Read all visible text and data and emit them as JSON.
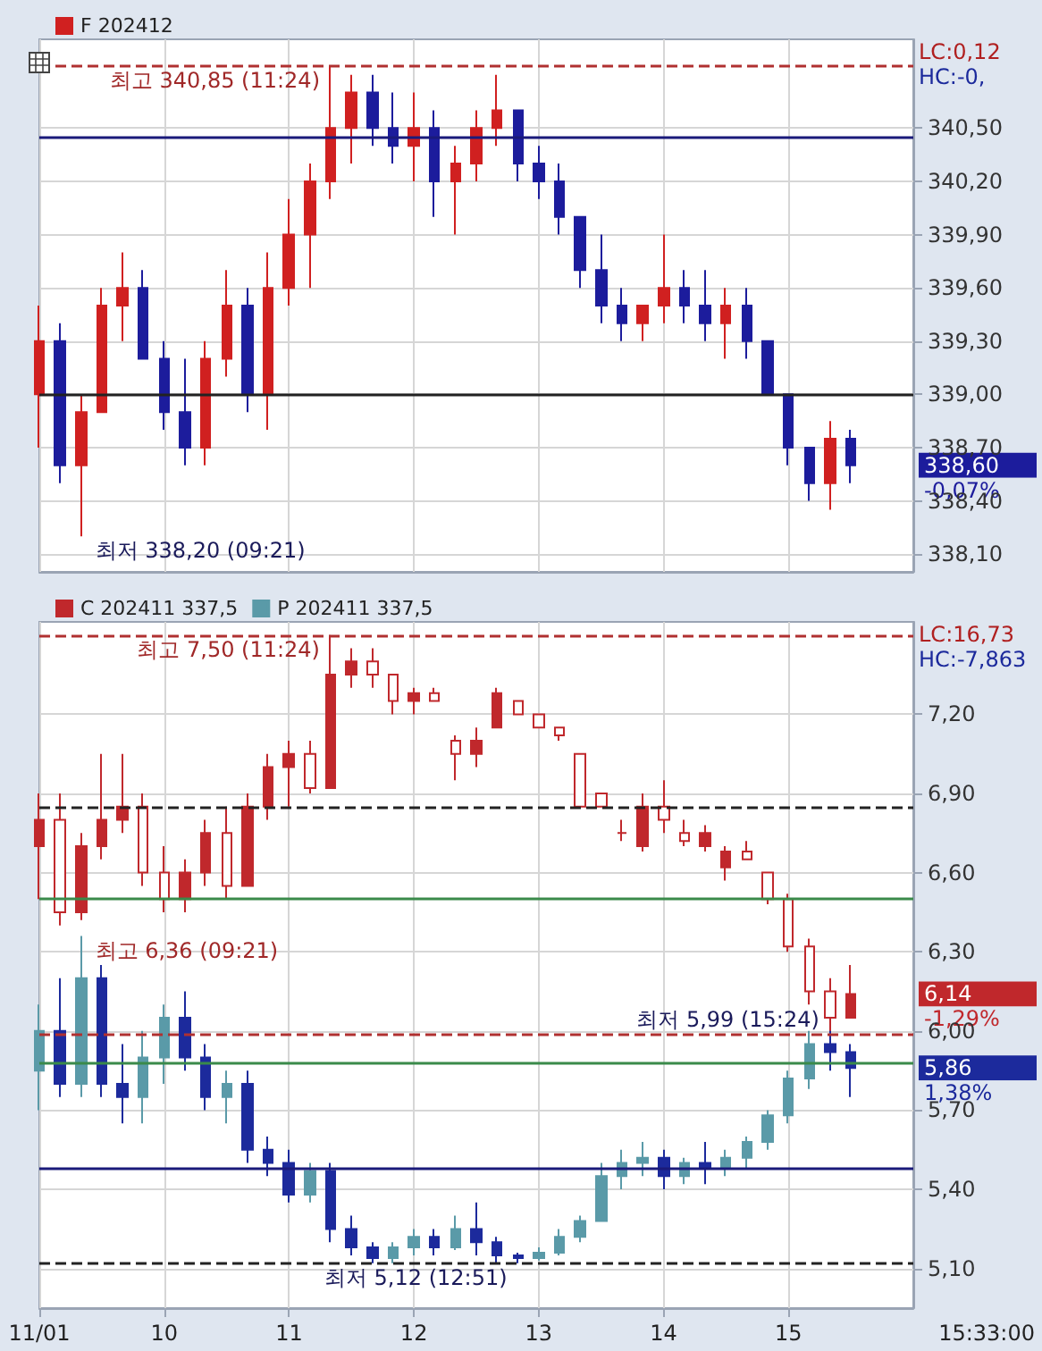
{
  "chart_data": [
    {
      "type": "candlestick",
      "legend": "top left",
      "grid": true,
      "tick_labels": "y",
      "x": [
        9,
        9.1667,
        9.3333,
        9.5,
        9.6667,
        9.8333,
        10,
        10.1667,
        10.3333,
        10.5,
        10.6667,
        10.8333,
        11,
        11.1667,
        11.3333,
        11.5,
        11.6667,
        11.8333,
        12,
        12.1667,
        12.3333,
        12.5,
        12.6667,
        12.8333,
        13,
        13.1667,
        13.3333,
        13.5,
        13.6667,
        13.8333,
        14,
        14.1667,
        14.3333,
        14.5,
        14.6667,
        14.8333,
        15,
        15.1667,
        15.3333,
        15.5
      ],
      "series": [
        {
          "name": "F 202412",
          "colors": [
            "#d02020",
            "#1c1c9c",
            "#d02020",
            "#d02020",
            "#d02020",
            "#1c1c9c",
            "#1c1c9c",
            "#1c1c9c",
            "#d02020",
            "#d02020",
            "#1c1c9c",
            "#d02020",
            "#d02020",
            "#d02020",
            "#d02020",
            "#d02020",
            "#1c1c9c",
            "#1c1c9c",
            "#d02020",
            "#1c1c9c",
            "#d02020",
            "#d02020",
            "#d02020",
            "#1c1c9c",
            "#1c1c9c",
            "#1c1c9c",
            "#1c1c9c",
            "#1c1c9c",
            "#1c1c9c",
            "#d02020",
            "#d02020",
            "#1c1c9c",
            "#1c1c9c",
            "#d02020",
            "#1c1c9c",
            "#1c1c9c",
            "#1c1c9c",
            "#1c1c9c",
            "#d02020",
            "#1c1c9c"
          ],
          "ohlc": [
            [
              339.0,
              339.5,
              338.7,
              339.3
            ],
            [
              339.3,
              339.4,
              338.5,
              338.6
            ],
            [
              338.6,
              339.0,
              338.2,
              338.9
            ],
            [
              338.9,
              339.6,
              338.9,
              339.5
            ],
            [
              339.5,
              339.8,
              339.3,
              339.6
            ],
            [
              339.6,
              339.7,
              339.2,
              339.2
            ],
            [
              339.2,
              339.3,
              338.8,
              338.9
            ],
            [
              338.9,
              339.2,
              338.6,
              338.7
            ],
            [
              338.7,
              339.3,
              338.6,
              339.2
            ],
            [
              339.2,
              339.7,
              339.1,
              339.5
            ],
            [
              339.5,
              339.6,
              338.9,
              339.0
            ],
            [
              339.0,
              339.8,
              338.8,
              339.6
            ],
            [
              339.6,
              340.1,
              339.5,
              339.9
            ],
            [
              339.9,
              340.3,
              339.6,
              340.2
            ],
            [
              340.2,
              340.85,
              340.1,
              340.5
            ],
            [
              340.5,
              340.8,
              340.3,
              340.7
            ],
            [
              340.7,
              340.8,
              340.4,
              340.5
            ],
            [
              340.5,
              340.7,
              340.3,
              340.4
            ],
            [
              340.4,
              340.7,
              340.2,
              340.5
            ],
            [
              340.5,
              340.6,
              340.0,
              340.2
            ],
            [
              340.2,
              340.4,
              339.9,
              340.3
            ],
            [
              340.3,
              340.6,
              340.2,
              340.5
            ],
            [
              340.5,
              340.8,
              340.4,
              340.6
            ],
            [
              340.6,
              340.6,
              340.2,
              340.3
            ],
            [
              340.3,
              340.4,
              340.1,
              340.2
            ],
            [
              340.2,
              340.3,
              339.9,
              340.0
            ],
            [
              340.0,
              340.0,
              339.6,
              339.7
            ],
            [
              339.7,
              339.9,
              339.4,
              339.5
            ],
            [
              339.5,
              339.6,
              339.3,
              339.4
            ],
            [
              339.4,
              339.5,
              339.3,
              339.5
            ],
            [
              339.5,
              339.9,
              339.4,
              339.6
            ],
            [
              339.6,
              339.7,
              339.4,
              339.5
            ],
            [
              339.5,
              339.7,
              339.3,
              339.4
            ],
            [
              339.4,
              339.6,
              339.2,
              339.5
            ],
            [
              339.5,
              339.6,
              339.2,
              339.3
            ],
            [
              339.3,
              339.3,
              339.0,
              339.0
            ],
            [
              339.0,
              339.0,
              338.6,
              338.7
            ],
            [
              338.7,
              338.7,
              338.4,
              338.5
            ],
            [
              338.5,
              338.85,
              338.35,
              338.75
            ],
            [
              338.75,
              338.8,
              338.5,
              338.6
            ]
          ]
        }
      ],
      "xlim": [
        9,
        16
      ],
      "xticks": [
        9,
        10,
        11,
        12,
        13,
        14,
        15
      ],
      "ylim": [
        338.0,
        341.0
      ],
      "yticks": [
        {
          "value": 338.1,
          "label": "338,10"
        },
        {
          "value": 338.4,
          "label": "338,40"
        },
        {
          "value": 338.7,
          "label": "338,70"
        },
        {
          "value": 339.0,
          "label": "339,00"
        },
        {
          "value": 339.3,
          "label": "339,30"
        },
        {
          "value": 339.6,
          "label": "339,60"
        },
        {
          "value": 339.9,
          "label": "339,90"
        },
        {
          "value": 340.2,
          "label": "340,20"
        },
        {
          "value": 340.5,
          "label": "340,50"
        }
      ],
      "ref_lines": [
        {
          "axis": "y",
          "value": 340.85,
          "color": "#b03030",
          "line_style": "dashed"
        },
        {
          "axis": "y",
          "value": 340.45,
          "color": "#1a1a7a",
          "line_style": "solid"
        },
        {
          "axis": "y",
          "value": 339.0,
          "color": "#222222",
          "line_style": "solid"
        }
      ],
      "annotations": [
        {
          "text": "최고 340,85 (11:24)",
          "x": 11.3333,
          "y": 340.85
        },
        {
          "text": "최저 338,20 (09:21)",
          "x": 9.3333,
          "y": 338.2
        },
        "338,60",
        "-0,07%",
        "LC:0,12",
        "HC:-0,"
      ]
    },
    {
      "type": "candlestick",
      "legend": "top left",
      "grid": true,
      "x": [
        9,
        9.1667,
        9.3333,
        9.5,
        9.6667,
        9.8333,
        10,
        10.1667,
        10.3333,
        10.5,
        10.6667,
        10.8333,
        11,
        11.1667,
        11.3333,
        11.5,
        11.6667,
        11.8333,
        12,
        12.1667,
        12.3333,
        12.5,
        12.6667,
        12.8333,
        13,
        13.1667,
        13.3333,
        13.5,
        13.6667,
        13.8333,
        14,
        14.1667,
        14.3333,
        14.5,
        14.6667,
        14.8333,
        15,
        15.1667,
        15.3333,
        15.5
      ],
      "series": [
        {
          "name": "C 202411 337,5",
          "colors": [
            "#c0282c",
            "#c0282c",
            "#c0282c",
            "#c0282c",
            "#c0282c",
            "#c0282c",
            "#c0282c",
            "#c0282c",
            "#c0282c",
            "#c0282c",
            "#c0282c",
            "#c0282c",
            "#c0282c",
            "#c0282c",
            "#c0282c",
            "#c0282c",
            "#c0282c",
            "#c0282c",
            "#c0282c",
            "#c0282c",
            "#c0282c",
            "#c0282c",
            "#c0282c",
            "#c0282c",
            "#c0282c",
            "#c0282c",
            "#c0282c",
            "#c0282c",
            "#c0282c",
            "#c0282c",
            "#c0282c",
            "#c0282c",
            "#c0282c",
            "#c0282c",
            "#c0282c",
            "#c0282c",
            "#c0282c",
            "#c0282c",
            "#c0282c",
            "#c0282c"
          ],
          "ohlc": [
            [
              6.7,
              6.9,
              6.5,
              6.8
            ],
            [
              6.8,
              6.9,
              6.4,
              6.45
            ],
            [
              6.45,
              6.75,
              6.42,
              6.7
            ],
            [
              6.7,
              7.05,
              6.65,
              6.8
            ],
            [
              6.8,
              7.05,
              6.75,
              6.85
            ],
            [
              6.85,
              6.9,
              6.55,
              6.6
            ],
            [
              6.6,
              6.7,
              6.45,
              6.5
            ],
            [
              6.5,
              6.65,
              6.45,
              6.6
            ],
            [
              6.6,
              6.8,
              6.55,
              6.75
            ],
            [
              6.75,
              6.85,
              6.5,
              6.55
            ],
            [
              6.55,
              6.9,
              6.55,
              6.85
            ],
            [
              6.85,
              7.05,
              6.8,
              7.0
            ],
            [
              7.0,
              7.1,
              6.85,
              7.05
            ],
            [
              7.05,
              7.1,
              6.9,
              6.92
            ],
            [
              6.92,
              7.5,
              6.92,
              7.35
            ],
            [
              7.35,
              7.45,
              7.3,
              7.4
            ],
            [
              7.4,
              7.45,
              7.3,
              7.35
            ],
            [
              7.35,
              7.35,
              7.2,
              7.25
            ],
            [
              7.25,
              7.3,
              7.2,
              7.28
            ],
            [
              7.28,
              7.3,
              7.25,
              7.25
            ],
            [
              7.1,
              7.12,
              6.95,
              7.05
            ],
            [
              7.05,
              7.15,
              7.0,
              7.1
            ],
            [
              7.15,
              7.3,
              7.15,
              7.28
            ],
            [
              7.25,
              7.25,
              7.2,
              7.2
            ],
            [
              7.2,
              7.2,
              7.15,
              7.15
            ],
            [
              7.15,
              7.15,
              7.1,
              7.12
            ],
            [
              7.05,
              7.05,
              6.85,
              6.85
            ],
            [
              6.9,
              6.9,
              6.85,
              6.85
            ],
            [
              6.75,
              6.8,
              6.72,
              6.75
            ],
            [
              6.7,
              6.9,
              6.68,
              6.85
            ],
            [
              6.85,
              6.95,
              6.75,
              6.8
            ],
            [
              6.75,
              6.8,
              6.7,
              6.72
            ],
            [
              6.7,
              6.78,
              6.68,
              6.75
            ],
            [
              6.62,
              6.7,
              6.57,
              6.68
            ],
            [
              6.68,
              6.72,
              6.65,
              6.65
            ],
            [
              6.6,
              6.6,
              6.48,
              6.5
            ],
            [
              6.5,
              6.52,
              6.3,
              6.32
            ],
            [
              6.32,
              6.35,
              6.1,
              6.15
            ],
            [
              6.15,
              6.2,
              5.99,
              6.05
            ],
            [
              6.05,
              6.25,
              6.05,
              6.14
            ]
          ]
        },
        {
          "name": "P 202411 337,5",
          "colors": [
            "#5a9aa8",
            "#1c2a9c",
            "#5a9aa8",
            "#1c2a9c",
            "#1c2a9c",
            "#5a9aa8",
            "#5a9aa8",
            "#1c2a9c",
            "#1c2a9c",
            "#5a9aa8",
            "#1c2a9c",
            "#1c2a9c",
            "#1c2a9c",
            "#5a9aa8",
            "#1c2a9c",
            "#1c2a9c",
            "#1c2a9c",
            "#5a9aa8",
            "#5a9aa8",
            "#1c2a9c",
            "#5a9aa8",
            "#1c2a9c",
            "#1c2a9c",
            "#1c2a9c",
            "#5a9aa8",
            "#5a9aa8",
            "#5a9aa8",
            "#5a9aa8",
            "#5a9aa8",
            "#5a9aa8",
            "#1c2a9c",
            "#5a9aa8",
            "#1c2a9c",
            "#5a9aa8",
            "#5a9aa8",
            "#5a9aa8",
            "#5a9aa8",
            "#5a9aa8",
            "#1c2a9c",
            "#1c2a9c"
          ],
          "ohlc": [
            [
              5.85,
              6.1,
              5.7,
              6.0
            ],
            [
              6.0,
              6.2,
              5.75,
              5.8
            ],
            [
              5.8,
              6.36,
              5.75,
              6.2
            ],
            [
              6.2,
              6.25,
              5.75,
              5.8
            ],
            [
              5.8,
              5.95,
              5.65,
              5.75
            ],
            [
              5.75,
              6.0,
              5.65,
              5.9
            ],
            [
              5.9,
              6.1,
              5.8,
              6.05
            ],
            [
              6.05,
              6.15,
              5.85,
              5.9
            ],
            [
              5.9,
              5.95,
              5.7,
              5.75
            ],
            [
              5.75,
              5.85,
              5.65,
              5.8
            ],
            [
              5.8,
              5.85,
              5.5,
              5.55
            ],
            [
              5.55,
              5.6,
              5.45,
              5.5
            ],
            [
              5.5,
              5.55,
              5.35,
              5.38
            ],
            [
              5.38,
              5.5,
              5.35,
              5.47
            ],
            [
              5.47,
              5.5,
              5.2,
              5.25
            ],
            [
              5.25,
              5.3,
              5.15,
              5.18
            ],
            [
              5.18,
              5.2,
              5.12,
              5.14
            ],
            [
              5.14,
              5.2,
              5.12,
              5.18
            ],
            [
              5.18,
              5.25,
              5.15,
              5.22
            ],
            [
              5.22,
              5.25,
              5.15,
              5.18
            ],
            [
              5.18,
              5.3,
              5.17,
              5.25
            ],
            [
              5.25,
              5.35,
              5.15,
              5.2
            ],
            [
              5.2,
              5.22,
              5.12,
              5.15
            ],
            [
              5.15,
              5.16,
              5.12,
              5.14
            ],
            [
              5.14,
              5.18,
              5.13,
              5.16
            ],
            [
              5.16,
              5.25,
              5.15,
              5.22
            ],
            [
              5.22,
              5.3,
              5.2,
              5.28
            ],
            [
              5.28,
              5.5,
              5.28,
              5.45
            ],
            [
              5.45,
              5.55,
              5.4,
              5.5
            ],
            [
              5.5,
              5.58,
              5.45,
              5.52
            ],
            [
              5.52,
              5.55,
              5.4,
              5.45
            ],
            [
              5.45,
              5.52,
              5.42,
              5.5
            ],
            [
              5.5,
              5.58,
              5.42,
              5.48
            ],
            [
              5.48,
              5.55,
              5.45,
              5.52
            ],
            [
              5.52,
              5.6,
              5.48,
              5.58
            ],
            [
              5.58,
              5.7,
              5.55,
              5.68
            ],
            [
              5.68,
              5.85,
              5.65,
              5.82
            ],
            [
              5.82,
              6.0,
              5.78,
              5.95
            ],
            [
              5.95,
              6.0,
              5.85,
              5.92
            ],
            [
              5.92,
              5.95,
              5.75,
              5.86
            ]
          ]
        }
      ],
      "xlim": [
        9,
        16
      ],
      "xticks": [
        {
          "value": 9,
          "label": "11/01"
        },
        10,
        11,
        12,
        13,
        14,
        15
      ],
      "ylim": [
        4.95,
        7.55
      ],
      "yticks": [
        {
          "value": 5.1,
          "label": "5,10"
        },
        {
          "value": 5.4,
          "label": "5,40"
        },
        {
          "value": 5.7,
          "label": "5,70"
        },
        {
          "value": 6.0,
          "label": "6,00"
        },
        {
          "value": 6.3,
          "label": "6,30"
        },
        {
          "value": 6.6,
          "label": "6,60"
        },
        {
          "value": 6.9,
          "label": "6,90"
        },
        {
          "value": 7.2,
          "label": "7,20"
        }
      ],
      "ref_lines": [
        {
          "axis": "y",
          "value": 7.5,
          "color": "#b03030",
          "line_style": "dashed"
        },
        {
          "axis": "y",
          "value": 6.85,
          "color": "#222222",
          "line_style": "dashed"
        },
        {
          "axis": "y",
          "value": 6.5,
          "color": "#3a8a4a",
          "line_style": "solid"
        },
        {
          "axis": "y",
          "value": 5.99,
          "color": "#b03030",
          "line_style": "dashed"
        },
        {
          "axis": "y",
          "value": 5.88,
          "color": "#3a8a4a",
          "line_style": "solid"
        },
        {
          "axis": "y",
          "value": 5.48,
          "color": "#1a1a7a",
          "line_style": "solid"
        },
        {
          "axis": "y",
          "value": 5.12,
          "color": "#222222",
          "line_style": "dashed"
        }
      ],
      "annotations": [
        {
          "text": "최고 7,50 (11:24)",
          "x": 11.3333,
          "y": 7.5
        },
        {
          "text": "최고 6,36 (09:21)",
          "x": 9.3333,
          "y": 6.36
        },
        {
          "text": "최저 5,99 (15:24)",
          "x": 15.3333,
          "y": 5.99
        },
        {
          "text": "최저 5,12 (12:51)",
          "x": 12.8333,
          "y": 5.12
        },
        "6,14",
        "-1,29%",
        "5,86",
        "1,38%",
        "LC:16,73",
        "HC:-7,863",
        "15:33:00"
      ]
    }
  ]
}
